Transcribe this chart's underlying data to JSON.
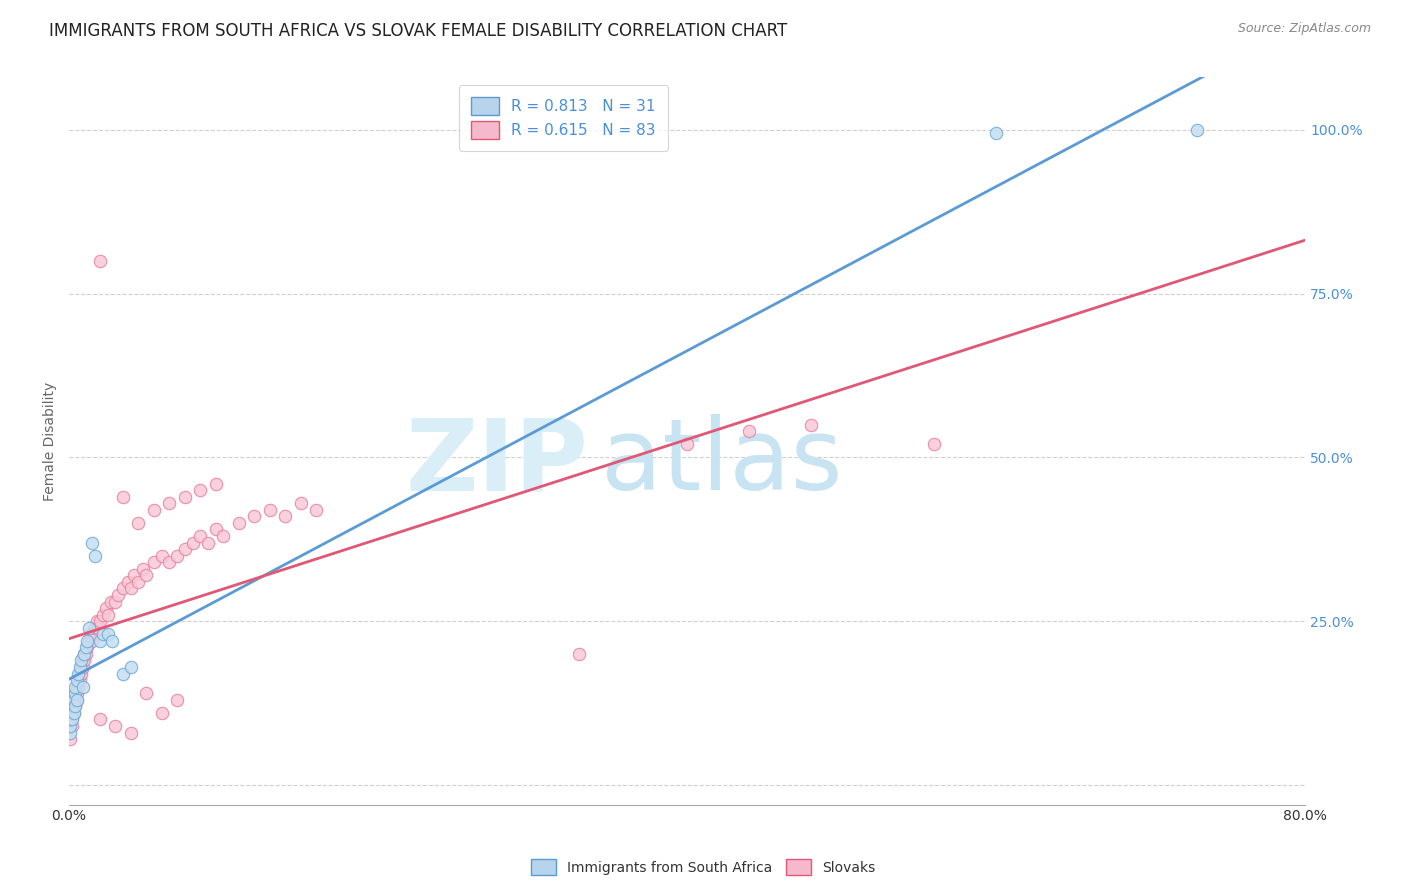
{
  "title": "IMMIGRANTS FROM SOUTH AFRICA VS SLOVAK FEMALE DISABILITY CORRELATION CHART",
  "source": "Source: ZipAtlas.com",
  "ylabel": "Female Disability",
  "xlim": [
    0.0,
    0.8
  ],
  "ylim": [
    -0.03,
    1.08
  ],
  "legend1_label": "R = 0.813   N = 31",
  "legend2_label": "R = 0.615   N = 83",
  "legend1_color_face": "#b8d4ec",
  "legend2_color_face": "#f5b8cc",
  "line1_color": "#5b9bd5",
  "line2_color": "#e05875",
  "scatter1_facecolor": "#c5ddf0",
  "scatter1_edgecolor": "#6aaad8",
  "scatter2_facecolor": "#f8c8d8",
  "scatter2_edgecolor": "#e8809a",
  "watermark_zip": "ZIP",
  "watermark_atlas": "atlas",
  "watermark_color": "#daeef8",
  "background_color": "#ffffff",
  "grid_color": "#d0d0d0",
  "title_fontsize": 12,
  "label_fontsize": 10,
  "tick_fontsize": 10,
  "legend_fontsize": 11,
  "south_africa_x": [
    0.001,
    0.001,
    0.001,
    0.002,
    0.002,
    0.002,
    0.003,
    0.003,
    0.004,
    0.004,
    0.004,
    0.005,
    0.005,
    0.006,
    0.007,
    0.008,
    0.009,
    0.01,
    0.011,
    0.012,
    0.013,
    0.015,
    0.017,
    0.02,
    0.022,
    0.025,
    0.028,
    0.035,
    0.04,
    0.6,
    0.73
  ],
  "south_africa_y": [
    0.08,
    0.09,
    0.1,
    0.11,
    0.1,
    0.12,
    0.13,
    0.11,
    0.14,
    0.12,
    0.15,
    0.13,
    0.16,
    0.17,
    0.18,
    0.19,
    0.15,
    0.2,
    0.21,
    0.22,
    0.24,
    0.37,
    0.35,
    0.22,
    0.23,
    0.23,
    0.22,
    0.17,
    0.18,
    0.995,
    1.0
  ],
  "slovaks_x": [
    0.001,
    0.001,
    0.001,
    0.002,
    0.002,
    0.002,
    0.002,
    0.003,
    0.003,
    0.003,
    0.004,
    0.004,
    0.005,
    0.005,
    0.005,
    0.006,
    0.006,
    0.007,
    0.007,
    0.008,
    0.008,
    0.009,
    0.009,
    0.01,
    0.01,
    0.011,
    0.012,
    0.013,
    0.014,
    0.015,
    0.016,
    0.017,
    0.018,
    0.019,
    0.02,
    0.022,
    0.024,
    0.025,
    0.027,
    0.03,
    0.032,
    0.035,
    0.038,
    0.04,
    0.042,
    0.045,
    0.048,
    0.05,
    0.055,
    0.06,
    0.065,
    0.07,
    0.075,
    0.08,
    0.085,
    0.09,
    0.095,
    0.1,
    0.11,
    0.12,
    0.13,
    0.14,
    0.15,
    0.16,
    0.035,
    0.045,
    0.055,
    0.065,
    0.075,
    0.085,
    0.095,
    0.4,
    0.44,
    0.33,
    0.48,
    0.02,
    0.03,
    0.04,
    0.05,
    0.06,
    0.07,
    0.56,
    0.02
  ],
  "slovaks_y": [
    0.07,
    0.09,
    0.11,
    0.09,
    0.11,
    0.12,
    0.1,
    0.12,
    0.13,
    0.11,
    0.14,
    0.12,
    0.13,
    0.14,
    0.15,
    0.15,
    0.16,
    0.16,
    0.17,
    0.17,
    0.18,
    0.18,
    0.19,
    0.19,
    0.2,
    0.2,
    0.21,
    0.22,
    0.23,
    0.22,
    0.23,
    0.24,
    0.25,
    0.24,
    0.25,
    0.26,
    0.27,
    0.26,
    0.28,
    0.28,
    0.29,
    0.3,
    0.31,
    0.3,
    0.32,
    0.31,
    0.33,
    0.32,
    0.34,
    0.35,
    0.34,
    0.35,
    0.36,
    0.37,
    0.38,
    0.37,
    0.39,
    0.38,
    0.4,
    0.41,
    0.42,
    0.41,
    0.43,
    0.42,
    0.44,
    0.4,
    0.42,
    0.43,
    0.44,
    0.45,
    0.46,
    0.52,
    0.54,
    0.2,
    0.55,
    0.1,
    0.09,
    0.08,
    0.14,
    0.11,
    0.13,
    0.52,
    0.8
  ]
}
